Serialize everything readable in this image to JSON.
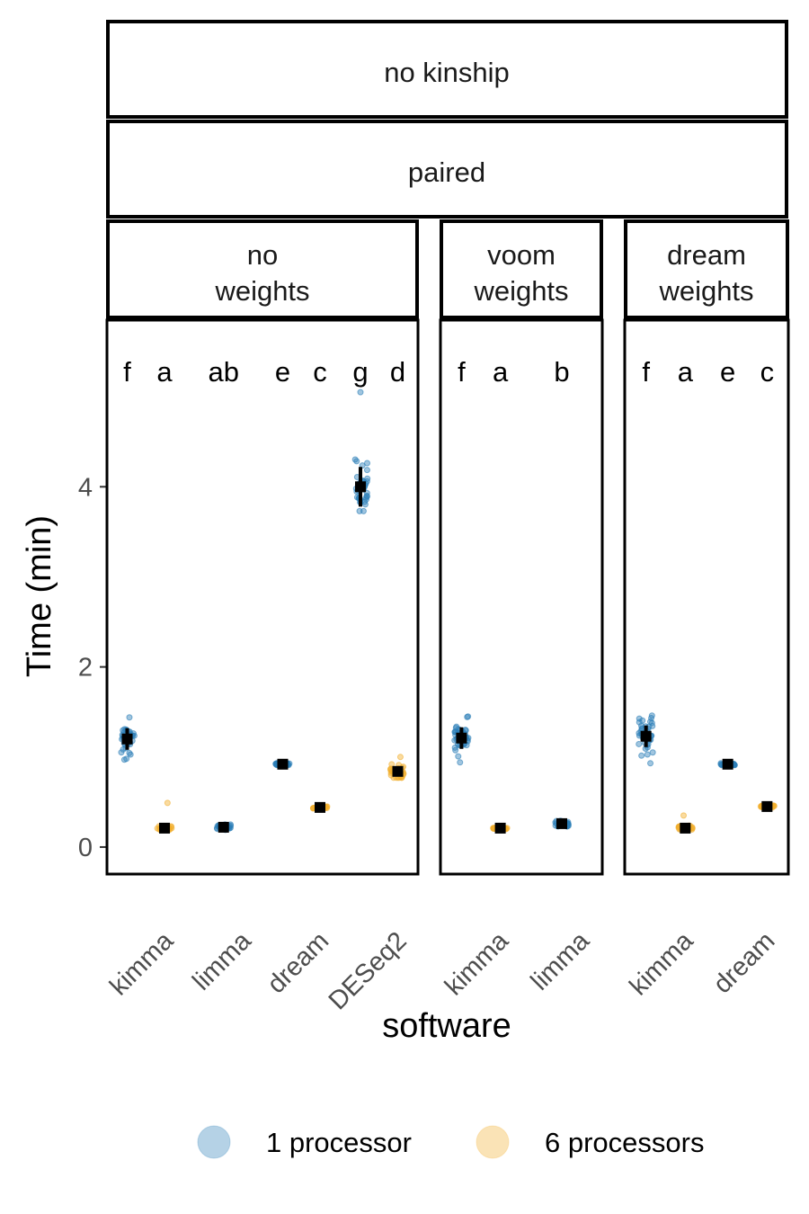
{
  "chart_data": {
    "type": "scatter",
    "facet_strips": {
      "level1": "no kinship",
      "level2": "paired"
    },
    "xlabel": "software",
    "ylabel": "Time (min)",
    "ylim": [
      -0.3,
      5.85
    ],
    "yticks": [
      0,
      2,
      4
    ],
    "legend": {
      "position": "bottom",
      "entries": [
        {
          "name": "1 processor",
          "color": "#2C7FB8"
        },
        {
          "name": "6 processors",
          "color": "#F2AF2F"
        }
      ]
    },
    "colors": {
      "one_processor": "#2C7FB8",
      "six_processors": "#F2AF2F",
      "summary": "#000000"
    },
    "panels": [
      {
        "strip": [
          "no",
          "weights"
        ],
        "categories": [
          "kimma",
          "limma",
          "dream",
          "DESeq2"
        ],
        "groups": [
          {
            "software": "kimma",
            "processors": "1 processor",
            "mean": 1.2,
            "sd": 0.12,
            "min": 0.97,
            "max": 1.44,
            "letter": "f"
          },
          {
            "software": "kimma",
            "processors": "6 processors",
            "mean": 0.21,
            "sd": 0.02,
            "min": 0.19,
            "max": 0.49,
            "letter": "a"
          },
          {
            "software": "limma",
            "processors": "1 processor",
            "mean": 0.22,
            "sd": 0.02,
            "min": 0.19,
            "max": 0.25,
            "letter": "ab"
          },
          {
            "software": "dream",
            "processors": "1 processor",
            "mean": 0.92,
            "sd": 0.01,
            "min": 0.91,
            "max": 0.93,
            "letter": "e"
          },
          {
            "software": "dream",
            "processors": "6 processors",
            "mean": 0.44,
            "sd": 0.01,
            "min": 0.43,
            "max": 0.45,
            "letter": "c"
          },
          {
            "software": "DESeq2",
            "processors": "1 processor",
            "mean": 4.0,
            "sd": 0.22,
            "min": 3.73,
            "max": 5.05,
            "letter": "g"
          },
          {
            "software": "DESeq2",
            "processors": "6 processors",
            "mean": 0.84,
            "sd": 0.05,
            "min": 0.77,
            "max": 1.0,
            "letter": "d"
          }
        ]
      },
      {
        "strip": [
          "voom",
          "weights"
        ],
        "categories": [
          "kimma",
          "limma"
        ],
        "groups": [
          {
            "software": "kimma",
            "processors": "1 processor",
            "mean": 1.21,
            "sd": 0.12,
            "min": 0.94,
            "max": 1.45,
            "letter": "f"
          },
          {
            "software": "kimma",
            "processors": "6 processors",
            "mean": 0.21,
            "sd": 0.01,
            "min": 0.2,
            "max": 0.22,
            "letter": "a"
          },
          {
            "software": "limma",
            "processors": "1 processor",
            "mean": 0.26,
            "sd": 0.02,
            "min": 0.23,
            "max": 0.29,
            "letter": "b"
          }
        ]
      },
      {
        "strip": [
          "dream",
          "weights"
        ],
        "categories": [
          "kimma",
          "dream"
        ],
        "groups": [
          {
            "software": "kimma",
            "processors": "1 processor",
            "mean": 1.23,
            "sd": 0.12,
            "min": 0.93,
            "max": 1.46,
            "letter": "f"
          },
          {
            "software": "kimma",
            "processors": "6 processors",
            "mean": 0.21,
            "sd": 0.02,
            "min": 0.19,
            "max": 0.35,
            "letter": "a"
          },
          {
            "software": "dream",
            "processors": "1 processor",
            "mean": 0.92,
            "sd": 0.01,
            "min": 0.91,
            "max": 0.93,
            "letter": "e"
          },
          {
            "software": "dream",
            "processors": "6 processors",
            "mean": 0.45,
            "sd": 0.01,
            "min": 0.44,
            "max": 0.46,
            "letter": "c"
          }
        ]
      }
    ]
  }
}
